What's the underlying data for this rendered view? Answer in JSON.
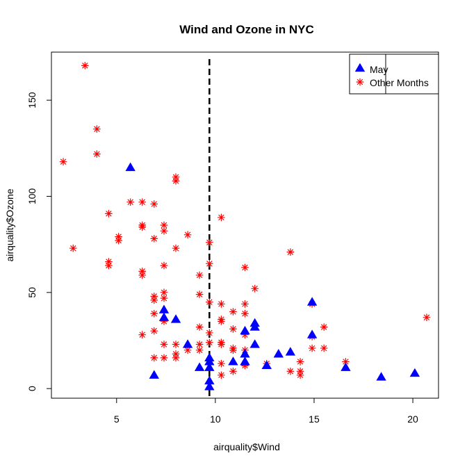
{
  "chart_data": {
    "type": "scatter",
    "title": "Wind and Ozone in NYC",
    "xlabel": "airquality$Wind",
    "ylabel": "airquality$Ozone",
    "xlim": [
      1.7,
      21.3
    ],
    "ylim": [
      -5,
      175
    ],
    "xticks": [
      5,
      10,
      15,
      20
    ],
    "yticks": [
      0,
      50,
      100,
      150
    ],
    "grid": false,
    "legend_position": "top-right",
    "reference_line": {
      "orientation": "vertical",
      "x": 9.7,
      "style": "dashed",
      "color": "#000000"
    },
    "series": [
      {
        "name": "May",
        "marker": "filled-triangle",
        "color": "#0000ff",
        "points": [
          [
            5.7,
            115
          ],
          [
            7.4,
            41
          ],
          [
            7.4,
            37
          ],
          [
            8.0,
            36
          ],
          [
            8.6,
            23
          ],
          [
            6.9,
            7
          ],
          [
            9.2,
            11
          ],
          [
            9.7,
            16
          ],
          [
            9.7,
            14
          ],
          [
            9.7,
            11
          ],
          [
            9.7,
            4
          ],
          [
            9.7,
            1
          ],
          [
            10.9,
            14
          ],
          [
            11.5,
            30
          ],
          [
            11.5,
            18
          ],
          [
            11.5,
            14
          ],
          [
            12.0,
            34
          ],
          [
            12.0,
            32
          ],
          [
            12.0,
            23
          ],
          [
            12.6,
            12
          ],
          [
            13.2,
            18
          ],
          [
            13.8,
            19
          ],
          [
            14.9,
            45
          ],
          [
            14.9,
            28
          ],
          [
            16.6,
            11
          ],
          [
            18.4,
            6
          ],
          [
            20.1,
            8
          ]
        ]
      },
      {
        "name": "Other Months",
        "marker": "asterisk",
        "color": "#ff0000",
        "points": [
          [
            3.4,
            168
          ],
          [
            4.0,
            135
          ],
          [
            4.0,
            122
          ],
          [
            2.3,
            118
          ],
          [
            2.8,
            73
          ],
          [
            4.6,
            91
          ],
          [
            4.6,
            66
          ],
          [
            4.6,
            64
          ],
          [
            5.1,
            79
          ],
          [
            5.1,
            77
          ],
          [
            5.7,
            97
          ],
          [
            6.3,
            97
          ],
          [
            6.3,
            85
          ],
          [
            6.3,
            84
          ],
          [
            6.3,
            61
          ],
          [
            6.3,
            59
          ],
          [
            6.3,
            28
          ],
          [
            6.9,
            96
          ],
          [
            6.9,
            78
          ],
          [
            6.9,
            48
          ],
          [
            6.9,
            46
          ],
          [
            6.9,
            39
          ],
          [
            6.9,
            30
          ],
          [
            6.9,
            16
          ],
          [
            7.4,
            85
          ],
          [
            7.4,
            82
          ],
          [
            7.4,
            64
          ],
          [
            7.4,
            50
          ],
          [
            7.4,
            47
          ],
          [
            7.4,
            35
          ],
          [
            7.4,
            23
          ],
          [
            7.4,
            16
          ],
          [
            8.0,
            110
          ],
          [
            8.0,
            108
          ],
          [
            8.0,
            73
          ],
          [
            8.0,
            23
          ],
          [
            8.0,
            18
          ],
          [
            8.0,
            16
          ],
          [
            8.6,
            80
          ],
          [
            8.6,
            20
          ],
          [
            9.2,
            59
          ],
          [
            9.2,
            49
          ],
          [
            9.2,
            32
          ],
          [
            9.2,
            23
          ],
          [
            9.2,
            20
          ],
          [
            9.7,
            76
          ],
          [
            9.7,
            65
          ],
          [
            9.7,
            45
          ],
          [
            9.7,
            29
          ],
          [
            9.7,
            24
          ],
          [
            10.3,
            89
          ],
          [
            10.3,
            44
          ],
          [
            10.3,
            36
          ],
          [
            10.3,
            35
          ],
          [
            10.3,
            24
          ],
          [
            10.3,
            23
          ],
          [
            10.3,
            13
          ],
          [
            10.3,
            7
          ],
          [
            10.9,
            40
          ],
          [
            10.9,
            31
          ],
          [
            10.9,
            21
          ],
          [
            10.9,
            20
          ],
          [
            10.9,
            9
          ],
          [
            11.5,
            63
          ],
          [
            11.5,
            44
          ],
          [
            11.5,
            39
          ],
          [
            11.5,
            28
          ],
          [
            11.5,
            20
          ],
          [
            11.5,
            13
          ],
          [
            11.5,
            12
          ],
          [
            12.0,
            52
          ],
          [
            12.6,
            13
          ],
          [
            13.8,
            71
          ],
          [
            13.8,
            9
          ],
          [
            14.3,
            14
          ],
          [
            14.3,
            9
          ],
          [
            14.3,
            7
          ],
          [
            14.9,
            44
          ],
          [
            14.9,
            27
          ],
          [
            14.9,
            21
          ],
          [
            15.5,
            32
          ],
          [
            15.5,
            21
          ],
          [
            16.6,
            14
          ],
          [
            20.7,
            37
          ]
        ]
      }
    ]
  }
}
